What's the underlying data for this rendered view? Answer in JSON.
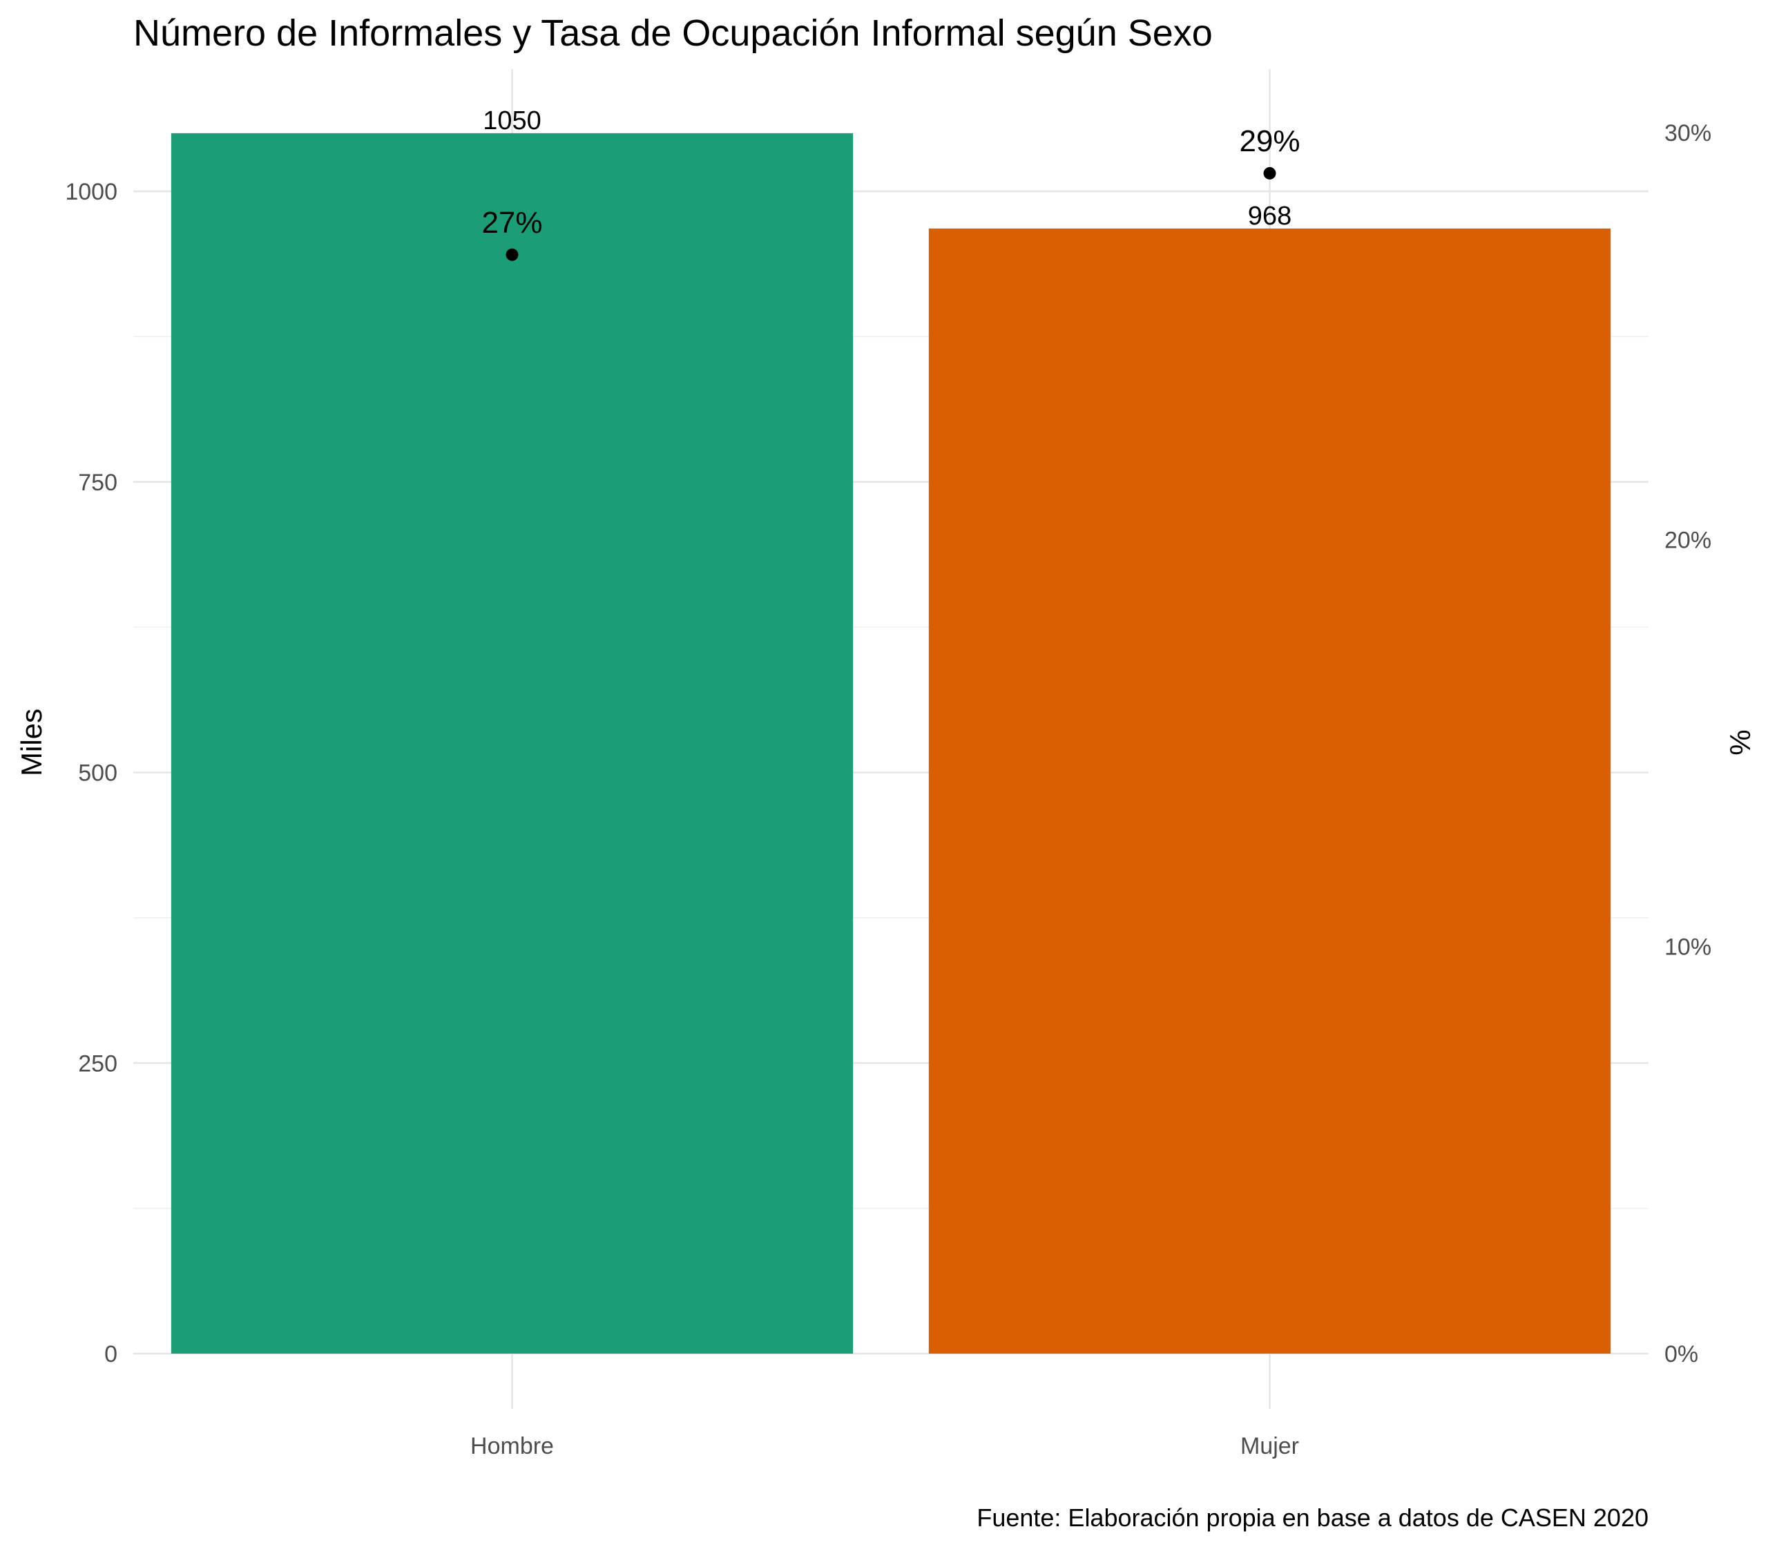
{
  "chart_data": {
    "type": "bar",
    "title": "Número de Informales y Tasa de Ocupación Informal según Sexo",
    "xlabel": "",
    "ylabel": "Miles",
    "y2label": "%",
    "caption": "Fuente: Elaboración propia en base a datos de CASEN 2020",
    "categories": [
      "Hombre",
      "Mujer"
    ],
    "values": [
      1050,
      968
    ],
    "value_labels": [
      "1050",
      "968"
    ],
    "colors": [
      "#1b9e77",
      "#d95f02"
    ],
    "rate": {
      "values": [
        27,
        29
      ],
      "labels": [
        "27%",
        "29%"
      ],
      "color": "#000000"
    },
    "ylim": [
      0,
      1050
    ],
    "yticks": [
      0,
      250,
      500,
      750,
      1000
    ],
    "ytick_labels": [
      "0",
      "250",
      "500",
      "750",
      "1000"
    ],
    "y2lim": [
      0,
      30
    ],
    "y2ticks": [
      0,
      10,
      20,
      30
    ],
    "y2tick_labels": [
      "0%",
      "10%",
      "20%",
      "30%"
    ],
    "grid": true
  }
}
